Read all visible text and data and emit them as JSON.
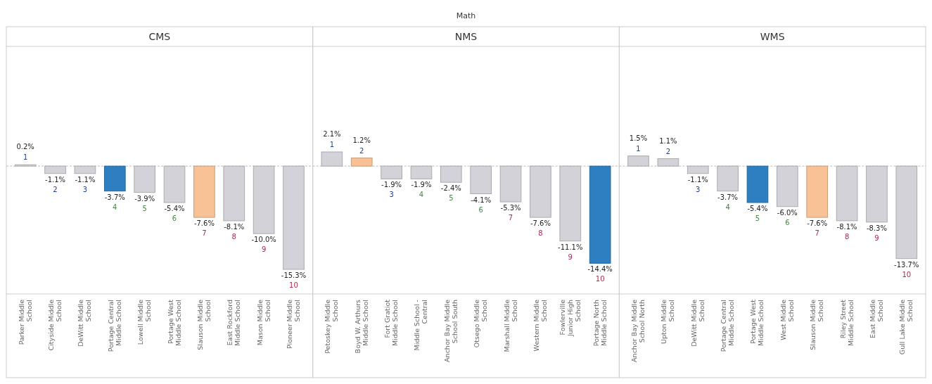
{
  "chart_data": [
    {
      "type": "bar",
      "title": "CMS",
      "ref_lines": [
        {
          "axis": "y",
          "value": 0,
          "color": "#bbbbbb",
          "line_style": "dashed"
        }
      ],
      "annotations": [
        "Math",
        {
          "text": "1",
          "x": "Parker Middle School",
          "y": 0.2
        },
        {
          "text": "2",
          "x": "Cityside Middle School",
          "y": -1.1
        },
        {
          "text": "3",
          "x": "DeWitt Middle School",
          "y": -1.1
        },
        {
          "text": "4",
          "x": "Portage Central Middle School",
          "y": -3.7
        },
        {
          "text": "5",
          "x": "Lowell Middle School",
          "y": -3.9
        },
        {
          "text": "6",
          "x": "Portage West Middle School",
          "y": -5.4
        },
        {
          "text": "7",
          "x": "Slauson Middle School",
          "y": -7.6
        },
        {
          "text": "8",
          "x": "East Rockford Middle School",
          "y": -8.1
        },
        {
          "text": "9",
          "x": "Mason Middle School",
          "y": -10.0
        },
        {
          "text": "10",
          "x": "Pioneer Middle School",
          "y": -15.3
        }
      ],
      "categories": [
        "Parker Middle School",
        "Cityside Middle School",
        "DeWitt Middle School",
        "Portage Central Middle School",
        "Lowell Middle School",
        "Portage West Middle School",
        "Slauson Middle School",
        "East Rockford Middle School",
        "Mason Middle School",
        "Pioneer Middle School"
      ],
      "values": [
        0.2,
        -1.1,
        -1.1,
        -3.7,
        -3.9,
        -5.4,
        -7.6,
        -8.1,
        -10.0,
        -15.3
      ],
      "colors": [
        "#d3d2d9",
        "#d3d2d9",
        "#d3d2d9",
        "#2e7fc1",
        "#d3d2d9",
        "#d3d2d9",
        "#f8c196",
        "#d3d2d9",
        "#d3d2d9",
        "#d3d2d9"
      ],
      "value_labels": [
        "0.2%",
        "-1.1%",
        "-1.1%",
        "-3.7%",
        "-3.9%",
        "-5.4%",
        "-7.6%",
        "-8.1%",
        "-10.0%",
        "-15.3%"
      ]
    },
    {
      "type": "bar",
      "title": "NMS",
      "ref_lines": [
        {
          "axis": "y",
          "value": 0,
          "color": "#bbbbbb",
          "line_style": "dashed"
        }
      ],
      "annotations": [
        {
          "text": "1",
          "x": "Petoskey Middle School",
          "y": 2.1
        },
        {
          "text": "2",
          "x": "Boyd W. Arthurs Middle School",
          "y": 1.2
        },
        {
          "text": "3",
          "x": "Fort Gratiot Middle School",
          "y": -1.9
        },
        {
          "text": "4",
          "x": "Middle School - Central",
          "y": -1.9
        },
        {
          "text": "5",
          "x": "Anchor Bay Middle School South",
          "y": -2.4
        },
        {
          "text": "6",
          "x": "Otsego Middle School",
          "y": -4.1
        },
        {
          "text": "7",
          "x": "Marshall Middle School",
          "y": -5.3
        },
        {
          "text": "8",
          "x": "Western Middle School",
          "y": -7.6
        },
        {
          "text": "9",
          "x": "Fowlerville Junior High School",
          "y": -11.1
        },
        {
          "text": "10",
          "x": "Portage North Middle School",
          "y": -14.4
        }
      ],
      "categories": [
        "Petoskey Middle School",
        "Boyd W. Arthurs Middle School",
        "Fort Gratiot Middle School",
        "Middle School - Central",
        "Anchor Bay Middle School South",
        "Otsego Middle School",
        "Marshall Middle School",
        "Western Middle School",
        "Fowlerville Junior High School",
        "Portage North Middle School"
      ],
      "values": [
        2.1,
        1.2,
        -1.9,
        -1.9,
        -2.4,
        -4.1,
        -5.3,
        -7.6,
        -11.1,
        -14.4
      ],
      "colors": [
        "#d3d2d9",
        "#f8c196",
        "#d3d2d9",
        "#d3d2d9",
        "#d3d2d9",
        "#d3d2d9",
        "#d3d2d9",
        "#d3d2d9",
        "#d3d2d9",
        "#2e7fc1"
      ],
      "value_labels": [
        "2.1%",
        "1.2%",
        "-1.9%",
        "-1.9%",
        "-2.4%",
        "-4.1%",
        "-5.3%",
        "-7.6%",
        "-11.1%",
        "-14.4%"
      ]
    },
    {
      "type": "bar",
      "title": "WMS",
      "ref_lines": [
        {
          "axis": "y",
          "value": 0,
          "color": "#bbbbbb",
          "line_style": "dashed"
        }
      ],
      "annotations": [
        {
          "text": "1",
          "x": "Anchor Bay Middle School North",
          "y": 1.5
        },
        {
          "text": "2",
          "x": "Upton Middle School",
          "y": 1.1
        },
        {
          "text": "3",
          "x": "DeWitt Middle School",
          "y": -1.1
        },
        {
          "text": "4",
          "x": "Portage Central Middle School",
          "y": -3.7
        },
        {
          "text": "5",
          "x": "Portage West Middle School",
          "y": -5.4
        },
        {
          "text": "6",
          "x": "West Middle School",
          "y": -6.0
        },
        {
          "text": "7",
          "x": "Slauson Middle School",
          "y": -7.6
        },
        {
          "text": "8",
          "x": "Riley Street Middle School",
          "y": -8.1
        },
        {
          "text": "9",
          "x": "East Middle School",
          "y": -8.3
        },
        {
          "text": "10",
          "x": "Gull Lake Middle School",
          "y": -13.7
        }
      ],
      "categories": [
        "Anchor Bay Middle School North",
        "Upton Middle School",
        "DeWitt Middle School",
        "Portage Central Middle School",
        "Portage West Middle School",
        "West Middle School",
        "Slauson Middle School",
        "Riley Street Middle School",
        "East Middle School",
        "Gull Lake Middle School"
      ],
      "values": [
        1.5,
        1.1,
        -1.1,
        -3.7,
        -5.4,
        -6.0,
        -7.6,
        -8.1,
        -8.3,
        -13.7
      ],
      "colors": [
        "#d3d2d9",
        "#d3d2d9",
        "#d3d2d9",
        "#d3d2d9",
        "#2e7fc1",
        "#d3d2d9",
        "#f8c196",
        "#d3d2d9",
        "#d3d2d9",
        "#d3d2d9"
      ],
      "value_labels": [
        "1.5%",
        "1.1%",
        "-1.1%",
        "-3.7%",
        "-5.4%",
        "-6.0%",
        "-7.6%",
        "-8.1%",
        "-8.3%",
        "-13.7%"
      ]
    }
  ]
}
